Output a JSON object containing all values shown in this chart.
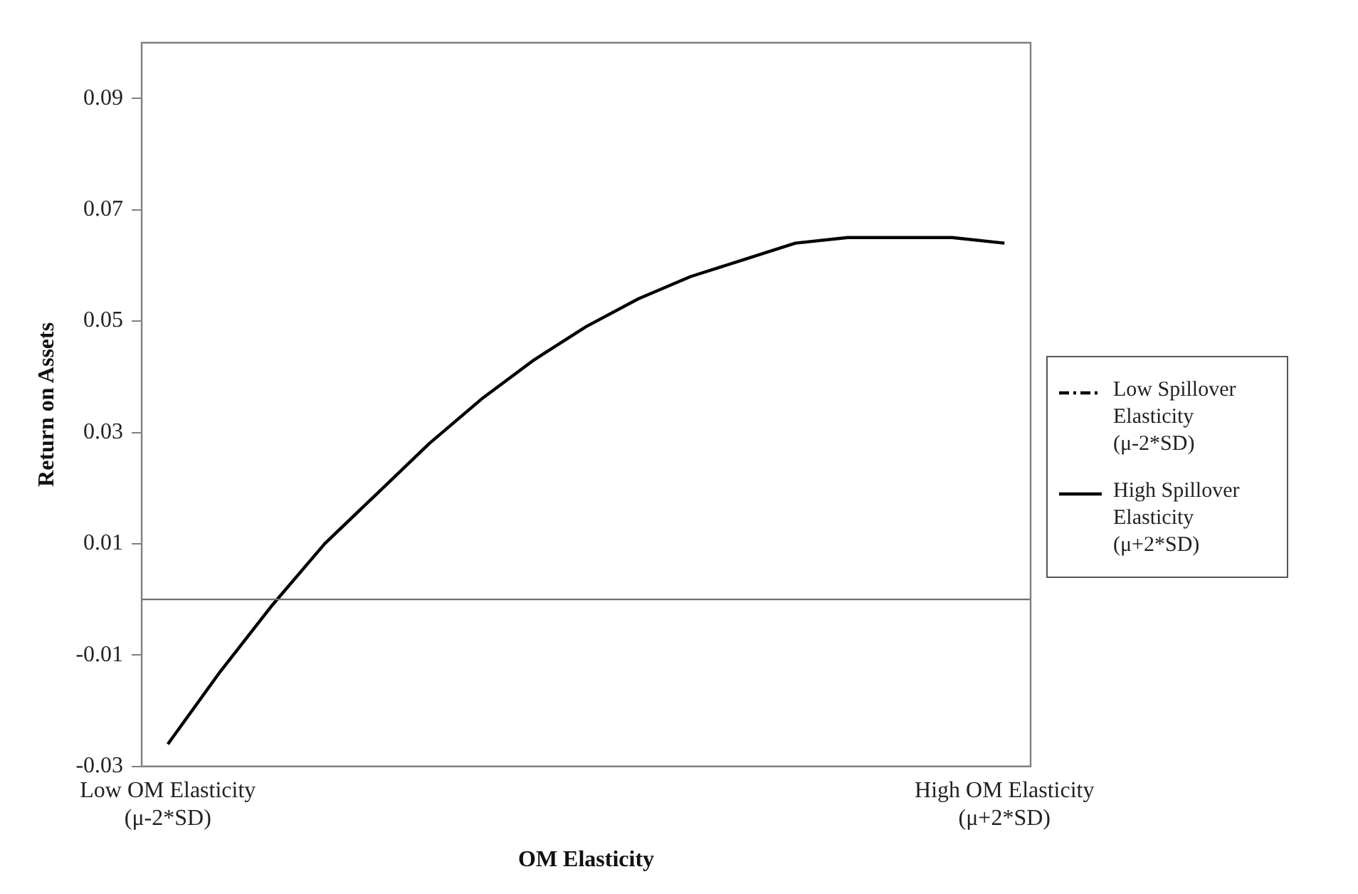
{
  "chart_data": {
    "type": "line",
    "xlabel": "OM Elasticity",
    "ylabel": "Return on Assets",
    "categories": [
      "Low OM Elasticity (μ-2*SD)",
      null,
      null,
      null,
      null,
      null,
      null,
      null,
      null,
      null,
      null,
      null,
      null,
      null,
      null,
      null,
      "High OM Elasticity (μ+2*SD)"
    ],
    "series": [
      {
        "name": "Low Spillover Elasticity (μ-2*SD)",
        "color": "#000000",
        "line_style": "dashed",
        "values": [
          null,
          null,
          null,
          null,
          null,
          null,
          null,
          null,
          null,
          null,
          null,
          null,
          null,
          null,
          null,
          null,
          null
        ]
      },
      {
        "name": "High Spillover Elasticity (μ+2*SD)",
        "color": "#000000",
        "line_style": "solid",
        "values": [
          -0.026,
          -0.013,
          -0.001,
          0.01,
          0.019,
          0.028,
          0.036,
          0.043,
          0.049,
          0.054,
          0.058,
          0.061,
          0.064,
          0.065,
          0.065,
          0.065,
          0.064
        ]
      }
    ],
    "ylim": [
      -0.03,
      0.1
    ],
    "yticks": [
      -0.03,
      -0.01,
      0.01,
      0.03,
      0.05,
      0.07,
      0.09
    ],
    "ref_lines": [
      {
        "axis": "y",
        "value": 0,
        "color": "#707070"
      }
    ],
    "grid": false,
    "legend": "right",
    "marker": "none"
  }
}
